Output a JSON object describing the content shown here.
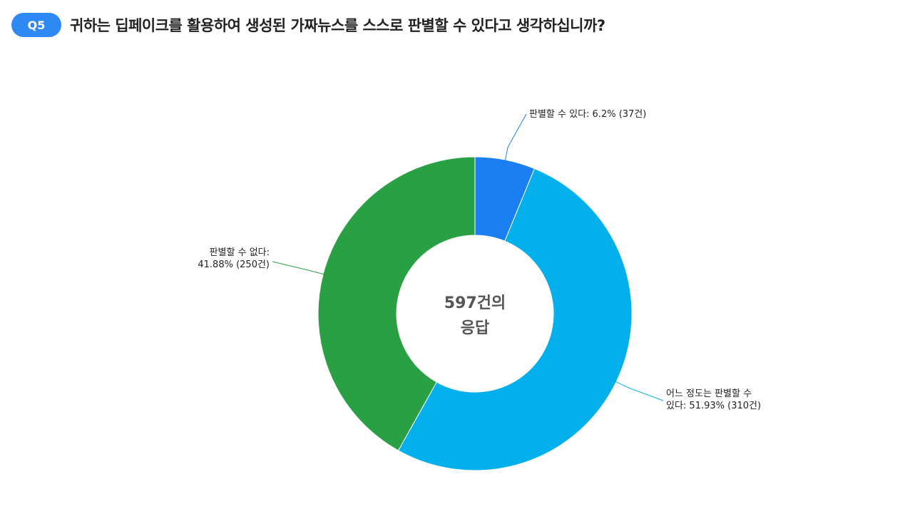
{
  "question": {
    "badge": "Q5",
    "title": "귀하는 딥페이크를 활용하여 생성된 가짜뉴스를 스스로 판별할 수 있다고 생각하십니까?"
  },
  "chart_data": {
    "type": "pie",
    "donut": true,
    "center_label_lines": [
      "597건의",
      "응답"
    ],
    "total_responses": 597,
    "slices": [
      {
        "label": "판별할 수 있다",
        "percent": 6.2,
        "count": 37,
        "color": "#1a7ff0",
        "callout_lines": [
          "판별할 수 있다: 6.2% (37건)"
        ]
      },
      {
        "label": "어느 정도는 판별할 수 있다",
        "percent": 51.93,
        "count": 310,
        "color": "#03b0eb",
        "callout_lines": [
          "어느 정도는 판별할 수",
          "있다: 51.93% (310건)"
        ]
      },
      {
        "label": "판별할 수 없다",
        "percent": 41.88,
        "count": 250,
        "color": "#28a043",
        "callout_lines": [
          "판별할 수 없다:",
          "41.88% (250건)"
        ]
      }
    ]
  }
}
